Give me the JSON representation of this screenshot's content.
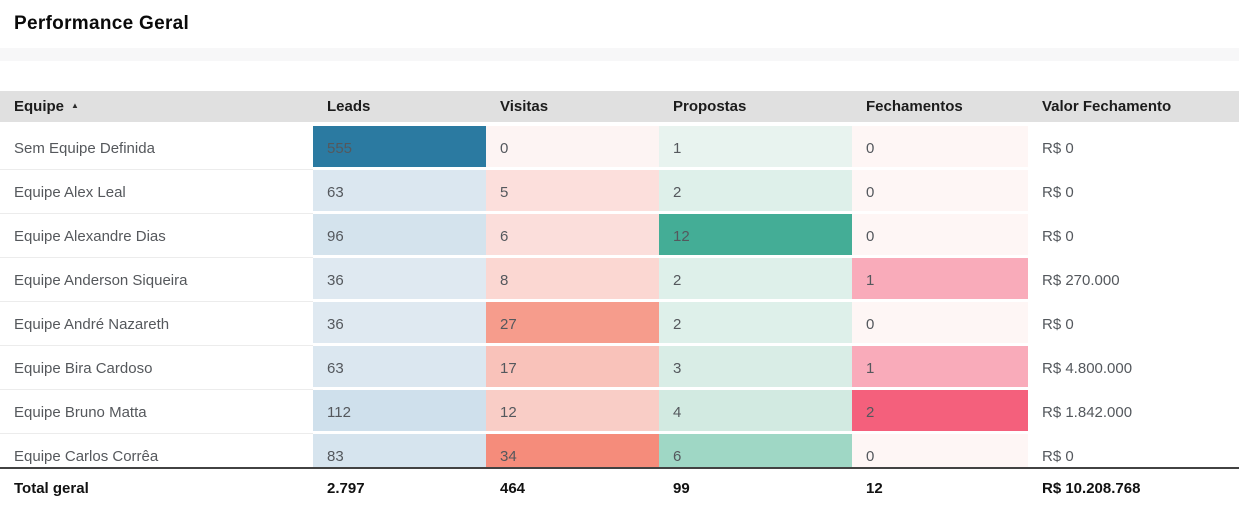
{
  "title": "Performance Geral",
  "icons": {
    "sort_asc": "▲"
  },
  "colors": {
    "header_bg": "#e0e0e0",
    "leads_accent": "#2b7aa1",
    "propostas_accent": "#44ad96",
    "fechamentos_accent": "#f4607c",
    "visitas_accent": "#f58c7b"
  },
  "chart_data": {
    "type": "table",
    "title": "Performance Geral",
    "sorted_by": "Equipe ascending",
    "columns": [
      {
        "key": "equipe",
        "label": "Equipe"
      },
      {
        "key": "leads",
        "label": "Leads"
      },
      {
        "key": "visitas",
        "label": "Visitas"
      },
      {
        "key": "propostas",
        "label": "Propostas"
      },
      {
        "key": "fechamentos",
        "label": "Fechamentos"
      },
      {
        "key": "valor",
        "label": "Valor Fechamento"
      }
    ],
    "rows": [
      {
        "equipe": "Sem Equipe Definida",
        "values": [
          {
            "v": "555",
            "bg": "#2b7aa1"
          },
          {
            "v": "0",
            "bg": "#fdf4f3"
          },
          {
            "v": "1",
            "bg": "#e8f3ef"
          },
          {
            "v": "0",
            "bg": "#fef6f5"
          },
          {
            "v": "R$ 0",
            "bg": ""
          }
        ]
      },
      {
        "equipe": "Equipe Alex Leal",
        "values": [
          {
            "v": "63",
            "bg": "#dbe7f0"
          },
          {
            "v": "5",
            "bg": "#fcdfdc"
          },
          {
            "v": "2",
            "bg": "#def0ea"
          },
          {
            "v": "0",
            "bg": "#fef6f5"
          },
          {
            "v": "R$ 0",
            "bg": ""
          }
        ]
      },
      {
        "equipe": "Equipe Alexandre Dias",
        "values": [
          {
            "v": "96",
            "bg": "#d4e3ed"
          },
          {
            "v": "6",
            "bg": "#fbdedb"
          },
          {
            "v": "12",
            "bg": "#44ad96"
          },
          {
            "v": "0",
            "bg": "#fef6f5"
          },
          {
            "v": "R$ 0",
            "bg": ""
          }
        ]
      },
      {
        "equipe": "Equipe Anderson Siqueira",
        "values": [
          {
            "v": "36",
            "bg": "#dfe9f1"
          },
          {
            "v": "8",
            "bg": "#fbd7d2"
          },
          {
            "v": "2",
            "bg": "#def0ea"
          },
          {
            "v": "1",
            "bg": "#f9abba"
          },
          {
            "v": "R$ 270.000",
            "bg": ""
          }
        ]
      },
      {
        "equipe": "Equipe André Nazareth",
        "values": [
          {
            "v": "36",
            "bg": "#dfe9f1"
          },
          {
            "v": "27",
            "bg": "#f69c8c"
          },
          {
            "v": "2",
            "bg": "#def0ea"
          },
          {
            "v": "0",
            "bg": "#fef6f5"
          },
          {
            "v": "R$ 0",
            "bg": ""
          }
        ]
      },
      {
        "equipe": "Equipe Bira Cardoso",
        "values": [
          {
            "v": "63",
            "bg": "#dbe7f0"
          },
          {
            "v": "17",
            "bg": "#f9c2ba"
          },
          {
            "v": "3",
            "bg": "#d9ede6"
          },
          {
            "v": "1",
            "bg": "#f9abba"
          },
          {
            "v": "R$ 4.800.000",
            "bg": ""
          }
        ]
      },
      {
        "equipe": "Equipe Bruno Matta",
        "values": [
          {
            "v": "112",
            "bg": "#cfe0ec"
          },
          {
            "v": "12",
            "bg": "#f9cdc6"
          },
          {
            "v": "4",
            "bg": "#d2eae1"
          },
          {
            "v": "2",
            "bg": "#f4607c"
          },
          {
            "v": "R$ 1.842.000",
            "bg": ""
          }
        ]
      },
      {
        "equipe": "Equipe Carlos Corrêa",
        "values": [
          {
            "v": "83",
            "bg": "#d6e4ee"
          },
          {
            "v": "34",
            "bg": "#f58c7b"
          },
          {
            "v": "6",
            "bg": "#9fd7c5"
          },
          {
            "v": "0",
            "bg": "#fef6f5"
          },
          {
            "v": "R$ 0",
            "bg": ""
          }
        ]
      }
    ],
    "total": {
      "label": "Total geral",
      "values": [
        "2.797",
        "464",
        "99",
        "12",
        "R$ 10.208.768"
      ]
    }
  }
}
